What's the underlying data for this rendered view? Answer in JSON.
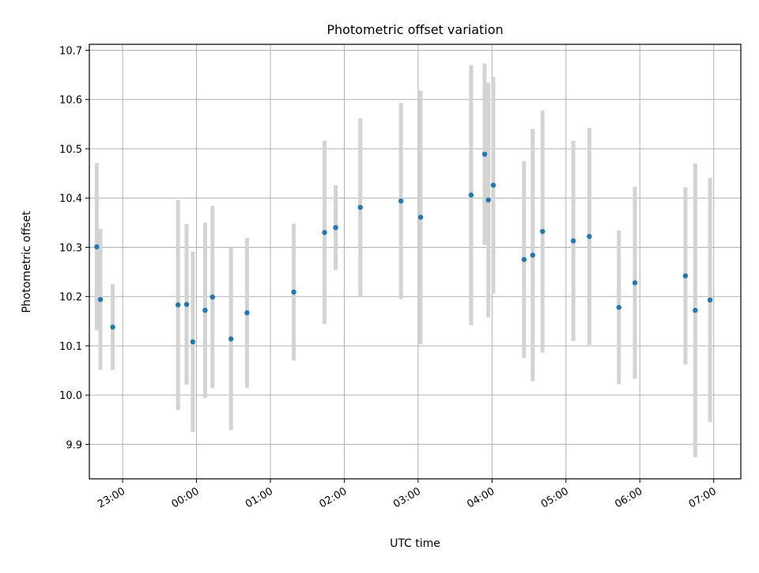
{
  "chart_data": {
    "type": "scatter",
    "title": "Photometric offset variation",
    "xlabel": "UTC time",
    "ylabel": "Photometric offset",
    "grid": true,
    "xlim": [
      "22:33",
      "07:22"
    ],
    "ylim": [
      9.83,
      10.712
    ],
    "x_ticks": [
      "23:00",
      "00:00",
      "01:00",
      "02:00",
      "03:00",
      "04:00",
      "05:00",
      "06:00",
      "07:00"
    ],
    "y_ticks": [
      "9.9",
      "10.0",
      "10.1",
      "10.2",
      "10.3",
      "10.4",
      "10.5",
      "10.6",
      "10.7"
    ],
    "colors": {
      "point": "#1f77b4",
      "errorbar": "#d3d3d3",
      "grid": "#b0b0b0"
    },
    "points": [
      {
        "x": "22:39",
        "y": 10.301,
        "yerr": 0.17
      },
      {
        "x": "22:42",
        "y": 10.194,
        "yerr": 0.143
      },
      {
        "x": "22:52",
        "y": 10.138,
        "yerr": 0.087
      },
      {
        "x": "23:45",
        "y": 10.183,
        "yerr": 0.213
      },
      {
        "x": "23:52",
        "y": 10.184,
        "yerr": 0.163
      },
      {
        "x": "23:57",
        "y": 10.108,
        "yerr": 0.183
      },
      {
        "x": "00:07",
        "y": 10.172,
        "yerr": 0.178
      },
      {
        "x": "00:13",
        "y": 10.199,
        "yerr": 0.185
      },
      {
        "x": "00:28",
        "y": 10.114,
        "yerr": 0.185
      },
      {
        "x": "00:41",
        "y": 10.167,
        "yerr": 0.152
      },
      {
        "x": "01:19",
        "y": 10.209,
        "yerr": 0.139
      },
      {
        "x": "01:44",
        "y": 10.33,
        "yerr": 0.186
      },
      {
        "x": "01:53",
        "y": 10.34,
        "yerr": 0.086
      },
      {
        "x": "02:13",
        "y": 10.381,
        "yerr": 0.181
      },
      {
        "x": "02:46",
        "y": 10.394,
        "yerr": 0.199
      },
      {
        "x": "03:02",
        "y": 10.361,
        "yerr": 0.257
      },
      {
        "x": "03:43",
        "y": 10.406,
        "yerr": 0.264
      },
      {
        "x": "03:54",
        "y": 10.489,
        "yerr": 0.184
      },
      {
        "x": "03:57",
        "y": 10.396,
        "yerr": 0.238
      },
      {
        "x": "04:01",
        "y": 10.426,
        "yerr": 0.22
      },
      {
        "x": "04:26",
        "y": 10.275,
        "yerr": 0.2
      },
      {
        "x": "04:33",
        "y": 10.284,
        "yerr": 0.256
      },
      {
        "x": "04:41",
        "y": 10.332,
        "yerr": 0.246
      },
      {
        "x": "05:06",
        "y": 10.313,
        "yerr": 0.203
      },
      {
        "x": "05:19",
        "y": 10.322,
        "yerr": 0.22
      },
      {
        "x": "05:43",
        "y": 10.178,
        "yerr": 0.156
      },
      {
        "x": "05:56",
        "y": 10.228,
        "yerr": 0.195
      },
      {
        "x": "06:37",
        "y": 10.242,
        "yerr": 0.18
      },
      {
        "x": "06:45",
        "y": 10.172,
        "yerr": 0.298
      },
      {
        "x": "06:57",
        "y": 10.193,
        "yerr": 0.248
      }
    ]
  }
}
